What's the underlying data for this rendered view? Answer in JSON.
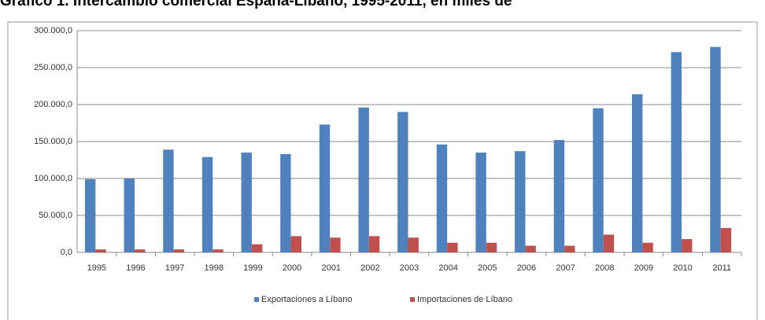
{
  "chart_data": {
    "type": "bar",
    "title": "Gráfico 1. Intercambio comercial España-Líbano, 1995-2011, en miles de",
    "categories": [
      "1995",
      "1996",
      "1997",
      "1998",
      "1999",
      "2000",
      "2001",
      "2002",
      "2003",
      "2004",
      "2005",
      "2006",
      "2007",
      "2008",
      "2009",
      "2010",
      "2011"
    ],
    "series": [
      {
        "name": "Exportaciones a Líbano",
        "color": "#4f81bd",
        "values": [
          99000,
          100000,
          139000,
          129000,
          135000,
          133000,
          173000,
          196000,
          190000,
          146000,
          135000,
          137000,
          152000,
          195000,
          214000,
          271000,
          278000
        ]
      },
      {
        "name": "Importaciones de Líbano",
        "color": "#c0504d",
        "values": [
          4000,
          4000,
          4000,
          4000,
          11000,
          22000,
          20000,
          22000,
          20000,
          13000,
          13000,
          9000,
          9000,
          24000,
          13000,
          18000,
          33000
        ]
      }
    ],
    "ylim": [
      0,
      300000
    ],
    "yticks": [
      {
        "value": 0,
        "label": "0,0"
      },
      {
        "value": 50000,
        "label": "50.000,0"
      },
      {
        "value": 100000,
        "label": "100.000,0"
      },
      {
        "value": 150000,
        "label": "150.000,0"
      },
      {
        "value": 200000,
        "label": "200.000,0"
      },
      {
        "value": 250000,
        "label": "250.000,0"
      },
      {
        "value": 300000,
        "label": "300.000,0"
      }
    ],
    "grid": true,
    "legend": "bottom"
  }
}
